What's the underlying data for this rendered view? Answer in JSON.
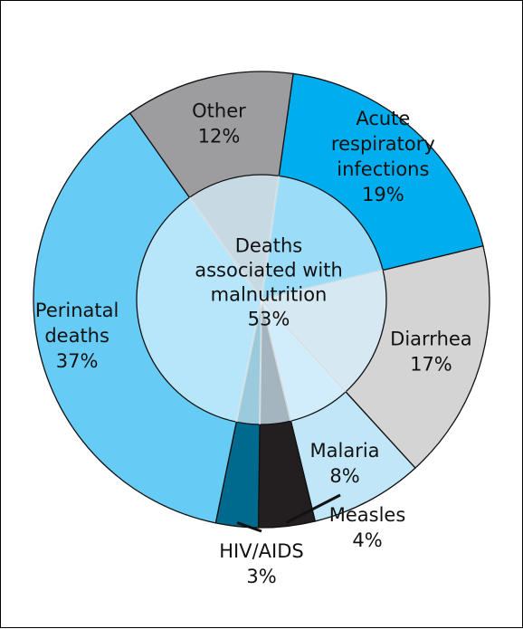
{
  "chart_data": {
    "type": "pie",
    "title": "",
    "slices": [
      {
        "label": "Acute respiratory infections",
        "label_lines": [
          "Acute",
          "respiratory",
          "infections"
        ],
        "percent": "19%",
        "value": 19,
        "color": "#00aeef"
      },
      {
        "label": "Diarrhea",
        "label_lines": [
          "Diarrhea"
        ],
        "percent": "17%",
        "value": 17,
        "color": "#d4d4d4"
      },
      {
        "label": "Malaria",
        "label_lines": [
          "Malaria"
        ],
        "percent": "8%",
        "value": 8,
        "color": "#c0e6f8"
      },
      {
        "label": "Measles",
        "label_lines": [
          "Measles"
        ],
        "percent": "4%",
        "value": 4,
        "color": "#231f20"
      },
      {
        "label": "HIV/AIDS",
        "label_lines": [
          "HIV/AIDS"
        ],
        "percent": "3%",
        "value": 3,
        "color": "#006a8e"
      },
      {
        "label": "Perinatal deaths",
        "label_lines": [
          "Perinatal",
          "deaths"
        ],
        "percent": "37%",
        "value": 37,
        "color": "#66ccf5"
      },
      {
        "label": "Other",
        "label_lines": [
          "Other"
        ],
        "percent": "12%",
        "value": 12,
        "color": "#9d9d9f"
      }
    ],
    "inner": {
      "label": "Deaths associated with malnutrition",
      "label_lines": [
        "Deaths",
        "associated with",
        "malnutrition"
      ],
      "percent": "53%",
      "value": 53,
      "color": "#d7f0fc"
    }
  }
}
